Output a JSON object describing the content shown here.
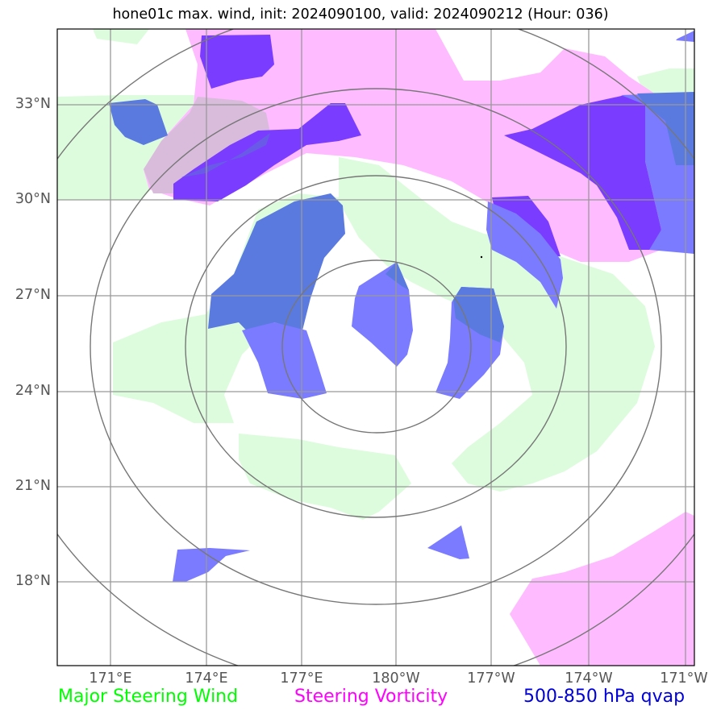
{
  "title": "hone01c max. wind, init: 2024090100, valid: 2024090212 (Hour: 036)",
  "lat_labels": [
    "33°N",
    "30°N",
    "27°N",
    "24°N",
    "21°N",
    "18°N"
  ],
  "lon_labels": [
    "171°E",
    "174°E",
    "177°E",
    "180°W",
    "177°W",
    "174°W",
    "171°W"
  ],
  "legend": [
    {
      "label": "Major Steering Wind",
      "color": "#00ff00"
    },
    {
      "label": "Steering Vorticity",
      "color": "#ff00ff"
    },
    {
      "label": "500-850 hPa qvap",
      "color": "#0000dd"
    }
  ],
  "colors": {
    "steering_wind_fill": "#ddfcdd",
    "vorticity_fill": "#ffbbff",
    "qvap_light": "#7b7bff",
    "qvap_mid": "#5a7ae0",
    "qvap_dark": "#7a3cff",
    "gridline": "#999999",
    "range_rings": "#777777"
  }
}
